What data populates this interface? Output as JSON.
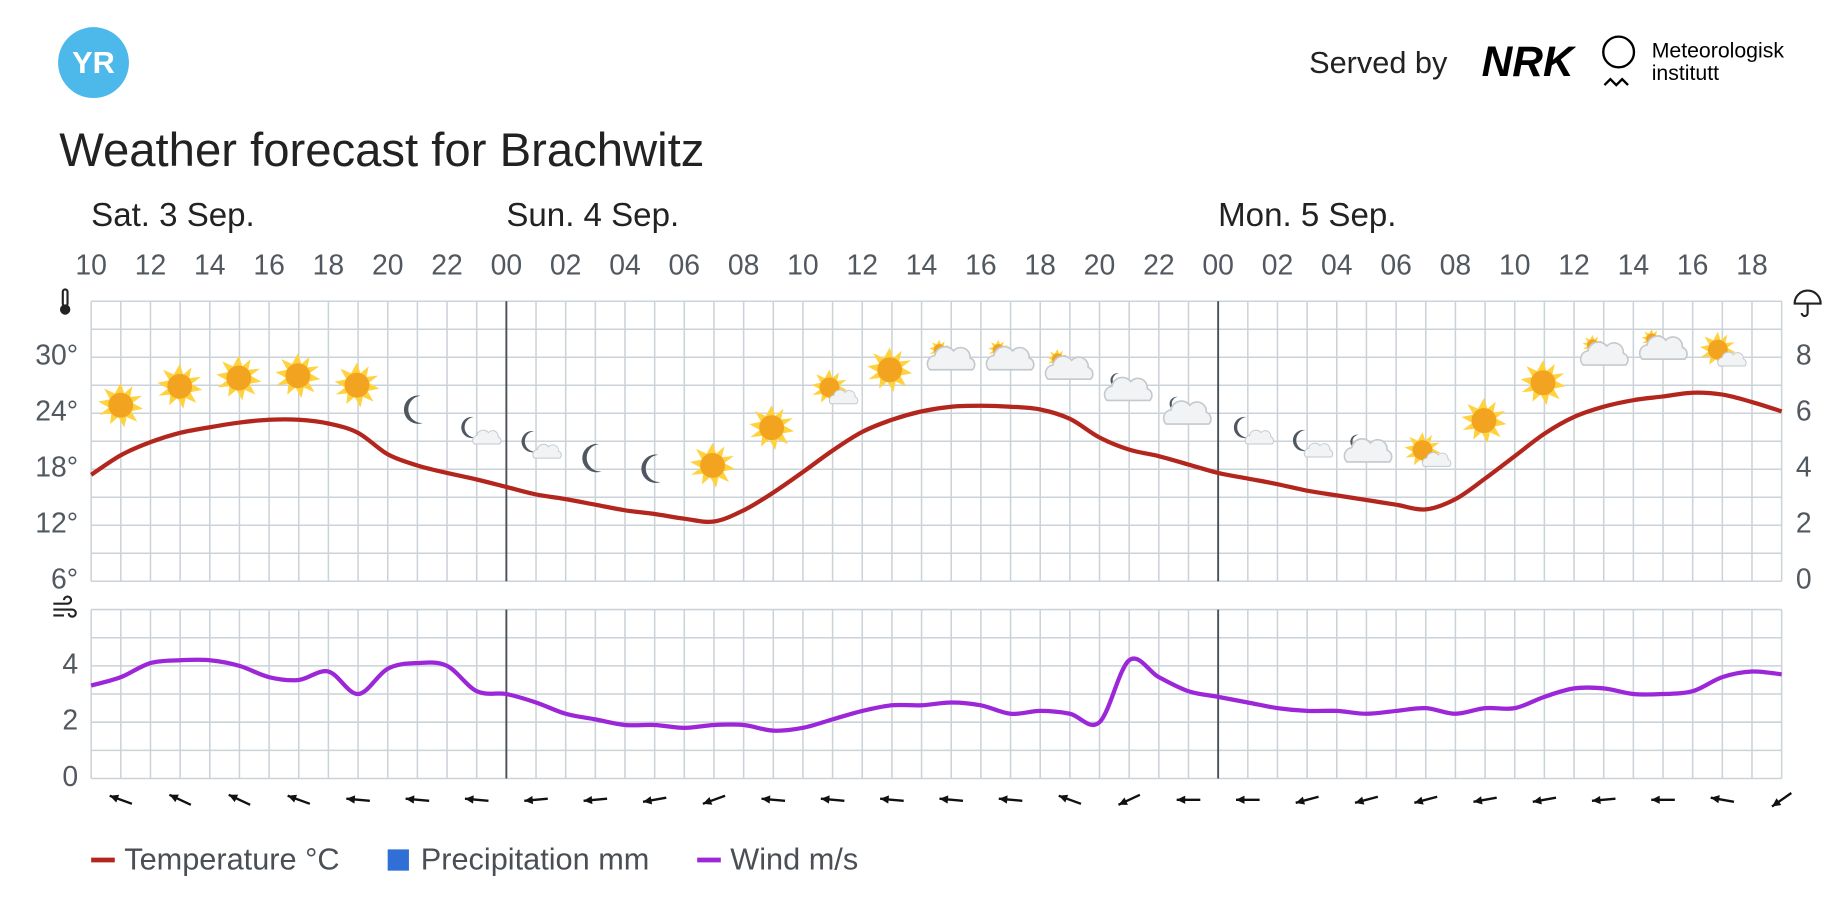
{
  "header": {
    "logo": "YR",
    "served_by": "Served by",
    "partner_1": "NRK",
    "partner_2_line_1": "Meteorologisk",
    "partner_2_line_2": "institutt",
    "title": "Weather forecast for Brachwitz"
  },
  "chart_data": [
    {
      "type": "line",
      "days": [
        "Sat. 3 Sep.",
        "Sun. 4 Sep.",
        "Mon. 5 Sep."
      ],
      "categories": [
        "10",
        null,
        "12",
        null,
        "14",
        null,
        "16",
        null,
        "18",
        null,
        "20",
        null,
        "22",
        null,
        "00",
        null,
        "02",
        null,
        "04",
        null,
        "06",
        null,
        "08",
        null,
        "10",
        null,
        "12",
        null,
        "14",
        null,
        "16",
        null,
        "18",
        null,
        "20",
        null,
        "22",
        null,
        "00",
        null,
        "02",
        null,
        "04",
        null,
        "06",
        null,
        "08",
        null,
        "10",
        null,
        "12",
        null,
        "14",
        null,
        "16",
        null,
        "18",
        null
      ],
      "series": [
        {
          "name": "Temperature °C",
          "color": "#b3261e",
          "values": [
            17.4,
            19.5,
            20.9,
            21.9,
            22.5,
            23.0,
            23.3,
            23.3,
            22.9,
            21.9,
            19.6,
            18.4,
            17.6,
            16.9,
            16.1,
            15.3,
            14.8,
            14.2,
            13.6,
            13.2,
            12.7,
            12.4,
            13.6,
            15.5,
            17.7,
            20.0,
            22.0,
            23.3,
            24.2,
            24.7,
            24.8,
            24.7,
            24.4,
            23.4,
            21.4,
            20.1,
            19.4,
            18.5,
            17.6,
            17.0,
            16.4,
            15.7,
            15.2,
            14.7,
            14.2,
            13.7,
            14.8,
            17.0,
            19.4,
            21.8,
            23.6,
            24.7,
            25.4,
            25.8,
            26.2,
            26.0,
            25.2,
            24.2
          ]
        },
        {
          "name": "Precipitation mm",
          "color": "#2f6fd6",
          "type": "bar",
          "axis": "y2",
          "values": [
            0,
            0,
            0,
            0,
            0,
            0,
            0,
            0,
            0,
            0,
            0,
            0,
            0,
            0,
            0,
            0,
            0,
            0,
            0,
            0,
            0,
            0,
            0,
            0,
            0,
            0,
            0,
            0,
            0,
            0,
            0,
            0,
            0,
            0,
            0,
            0,
            0,
            0,
            0,
            0,
            0,
            0,
            0,
            0,
            0,
            0,
            0,
            0,
            0,
            0,
            0,
            0,
            0,
            0,
            0,
            0,
            0,
            0
          ]
        }
      ],
      "ylim": [
        6,
        36
      ],
      "yticks": [
        {
          "value": 6,
          "label": "6°"
        },
        {
          "value": 12,
          "label": "12°"
        },
        {
          "value": 18,
          "label": "18°"
        },
        {
          "value": 24,
          "label": "24°"
        },
        {
          "value": 30,
          "label": "30°"
        }
      ],
      "y2lim": [
        0,
        10
      ],
      "y2ticks": [
        0,
        2,
        4,
        6,
        8
      ],
      "grid": true
    },
    {
      "type": "line",
      "series": [
        {
          "name": "Wind m/s",
          "color": "#9c27d9",
          "values": [
            3.3,
            3.6,
            4.1,
            4.2,
            4.2,
            4.0,
            3.6,
            3.5,
            3.8,
            3.0,
            3.9,
            4.1,
            4.0,
            3.1,
            3.0,
            2.7,
            2.3,
            2.1,
            1.9,
            1.9,
            1.8,
            1.9,
            1.9,
            1.7,
            1.8,
            2.1,
            2.4,
            2.6,
            2.6,
            2.7,
            2.6,
            2.3,
            2.4,
            2.3,
            2.0,
            4.2,
            3.6,
            3.1,
            2.9,
            2.7,
            2.5,
            2.4,
            2.4,
            2.3,
            2.4,
            2.5,
            2.3,
            2.5,
            2.5,
            2.9,
            3.2,
            3.2,
            3.0,
            3.0,
            3.1,
            3.6,
            3.8,
            3.7
          ]
        }
      ],
      "direction": [
        110,
        115,
        115,
        110,
        95,
        95,
        95,
        85,
        85,
        80,
        70,
        95,
        95,
        95,
        95,
        95,
        110,
        65,
        90,
        90,
        75,
        75,
        75,
        80,
        80,
        85,
        90,
        100,
        55
      ],
      "ylim": [
        0,
        6
      ],
      "yticks": [
        0,
        2,
        4
      ],
      "grid": true
    }
  ]
}
